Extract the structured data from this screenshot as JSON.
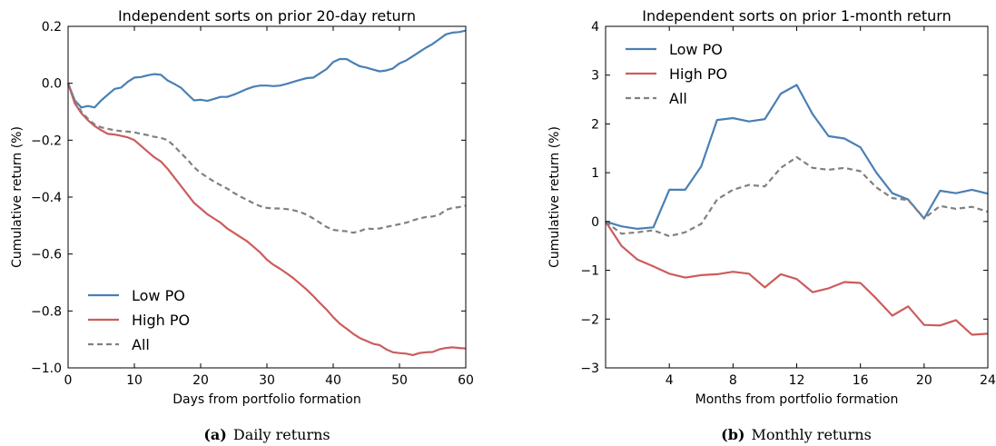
{
  "chart_data": [
    {
      "type": "line",
      "title": "Independent sorts on prior 20-day return",
      "xlabel": "Days from portfolio formation",
      "ylabel": "Cumulative return (%)",
      "xlim": [
        0,
        60
      ],
      "ylim": [
        -1.0,
        0.2
      ],
      "xticks": [
        0,
        10,
        20,
        30,
        40,
        50,
        60
      ],
      "xtick_labels": [
        "0",
        "10",
        "20",
        "30",
        "40",
        "50",
        "60"
      ],
      "yticks": [
        -1.0,
        -0.8,
        -0.6,
        -0.4,
        -0.2,
        0.0,
        0.2
      ],
      "ytick_labels": [
        "−1.0",
        "−0.8",
        "−0.6",
        "−0.4",
        "−0.2",
        "0.0",
        "0.2"
      ],
      "legend_position": "lower-left",
      "caption_label": "(a)",
      "caption_text": "Daily returns",
      "series": [
        {
          "name": "Low PO",
          "color": "#4a7fb4",
          "dash": false,
          "x": [
            0,
            1,
            2,
            3,
            4,
            5,
            6,
            7,
            8,
            9,
            10,
            11,
            12,
            13,
            14,
            15,
            16,
            17,
            18,
            19,
            20,
            21,
            22,
            23,
            24,
            25,
            26,
            27,
            28,
            29,
            30,
            31,
            32,
            33,
            34,
            35,
            36,
            37,
            38,
            39,
            40,
            41,
            42,
            43,
            44,
            45,
            46,
            47,
            48,
            49,
            50,
            51,
            52,
            53,
            54,
            55,
            56,
            57,
            58,
            59,
            60
          ],
          "y": [
            0.0,
            -0.06,
            -0.085,
            -0.08,
            -0.085,
            -0.06,
            -0.04,
            -0.02,
            -0.015,
            0.005,
            0.02,
            0.022,
            0.028,
            0.032,
            0.03,
            0.01,
            -0.002,
            -0.015,
            -0.038,
            -0.06,
            -0.058,
            -0.062,
            -0.055,
            -0.048,
            -0.048,
            -0.04,
            -0.03,
            -0.02,
            -0.012,
            -0.008,
            -0.008,
            -0.01,
            -0.008,
            -0.002,
            0.005,
            0.012,
            0.018,
            0.02,
            0.035,
            0.05,
            0.075,
            0.085,
            0.085,
            0.072,
            0.06,
            0.055,
            0.048,
            0.042,
            0.045,
            0.052,
            0.07,
            0.08,
            0.095,
            0.11,
            0.125,
            0.138,
            0.155,
            0.172,
            0.178,
            0.18,
            0.185
          ]
        },
        {
          "name": "High PO",
          "color": "#cc5c5c",
          "dash": false,
          "x": [
            0,
            1,
            2,
            3,
            4,
            5,
            6,
            7,
            8,
            9,
            10,
            11,
            12,
            13,
            14,
            15,
            16,
            17,
            18,
            19,
            20,
            21,
            22,
            23,
            24,
            25,
            26,
            27,
            28,
            29,
            30,
            31,
            32,
            33,
            34,
            35,
            36,
            37,
            38,
            39,
            40,
            41,
            42,
            43,
            44,
            45,
            46,
            47,
            48,
            49,
            50,
            51,
            52,
            53,
            54,
            55,
            56,
            57,
            58,
            59,
            60
          ],
          "y": [
            0.0,
            -0.07,
            -0.105,
            -0.13,
            -0.15,
            -0.165,
            -0.178,
            -0.18,
            -0.185,
            -0.19,
            -0.2,
            -0.22,
            -0.24,
            -0.26,
            -0.275,
            -0.3,
            -0.33,
            -0.36,
            -0.39,
            -0.42,
            -0.44,
            -0.46,
            -0.475,
            -0.49,
            -0.51,
            -0.525,
            -0.54,
            -0.555,
            -0.575,
            -0.595,
            -0.62,
            -0.638,
            -0.652,
            -0.668,
            -0.685,
            -0.705,
            -0.725,
            -0.748,
            -0.772,
            -0.795,
            -0.822,
            -0.845,
            -0.862,
            -0.88,
            -0.895,
            -0.905,
            -0.915,
            -0.92,
            -0.935,
            -0.945,
            -0.948,
            -0.95,
            -0.955,
            -0.948,
            -0.945,
            -0.944,
            -0.935,
            -0.93,
            -0.928,
            -0.93,
            -0.932
          ]
        },
        {
          "name": "All",
          "color": "#808080",
          "dash": true,
          "x": [
            0,
            1,
            2,
            3,
            4,
            5,
            6,
            7,
            8,
            9,
            10,
            11,
            12,
            13,
            14,
            15,
            16,
            17,
            18,
            19,
            20,
            21,
            22,
            23,
            24,
            25,
            26,
            27,
            28,
            29,
            30,
            31,
            32,
            33,
            34,
            35,
            36,
            37,
            38,
            39,
            40,
            41,
            42,
            43,
            44,
            45,
            46,
            47,
            48,
            49,
            50,
            51,
            52,
            53,
            54,
            55,
            56,
            57,
            58,
            59,
            60
          ],
          "y": [
            0.0,
            -0.06,
            -0.1,
            -0.125,
            -0.145,
            -0.155,
            -0.16,
            -0.165,
            -0.168,
            -0.17,
            -0.172,
            -0.178,
            -0.182,
            -0.188,
            -0.192,
            -0.2,
            -0.22,
            -0.245,
            -0.268,
            -0.295,
            -0.315,
            -0.33,
            -0.345,
            -0.358,
            -0.37,
            -0.385,
            -0.398,
            -0.41,
            -0.422,
            -0.432,
            -0.438,
            -0.44,
            -0.44,
            -0.442,
            -0.446,
            -0.452,
            -0.462,
            -0.475,
            -0.49,
            -0.505,
            -0.515,
            -0.518,
            -0.52,
            -0.525,
            -0.52,
            -0.51,
            -0.512,
            -0.51,
            -0.505,
            -0.5,
            -0.495,
            -0.49,
            -0.482,
            -0.475,
            -0.47,
            -0.468,
            -0.462,
            -0.445,
            -0.438,
            -0.435,
            -0.43
          ]
        }
      ]
    },
    {
      "type": "line",
      "title": "Independent sorts on prior 1-month return",
      "xlabel": "Months from portfolio formation",
      "ylabel": "Cumulative return (%)",
      "xlim": [
        0,
        24
      ],
      "ylim": [
        -3,
        4
      ],
      "xticks": [
        4,
        8,
        12,
        16,
        20,
        24
      ],
      "xtick_labels": [
        "4",
        "8",
        "12",
        "16",
        "20",
        "24"
      ],
      "yticks": [
        -3,
        -2,
        -1,
        0,
        1,
        2,
        3,
        4
      ],
      "ytick_labels": [
        "−3",
        "−2",
        "−1",
        "0",
        "1",
        "2",
        "3",
        "4"
      ],
      "legend_position": "top-left",
      "caption_label": "(b)",
      "caption_text": "Monthly returns",
      "series": [
        {
          "name": "Low PO",
          "color": "#4a7fb4",
          "dash": false,
          "x": [
            0,
            1,
            2,
            3,
            4,
            5,
            6,
            7,
            8,
            9,
            10,
            11,
            12,
            13,
            14,
            15,
            16,
            17,
            18,
            19,
            20,
            21,
            22,
            23,
            24
          ],
          "y": [
            0.0,
            -0.1,
            -0.15,
            -0.12,
            0.65,
            0.65,
            1.13,
            2.08,
            2.12,
            2.05,
            2.1,
            2.62,
            2.8,
            2.2,
            1.75,
            1.7,
            1.52,
            1.0,
            0.58,
            0.45,
            0.06,
            0.63,
            0.58,
            0.65,
            0.57
          ]
        },
        {
          "name": "High PO",
          "color": "#cc5c5c",
          "dash": false,
          "x": [
            0,
            1,
            2,
            3,
            4,
            5,
            6,
            7,
            8,
            9,
            10,
            11,
            12,
            13,
            14,
            15,
            16,
            17,
            18,
            19,
            20,
            21,
            22,
            23,
            24
          ],
          "y": [
            0.0,
            -0.5,
            -0.78,
            -0.92,
            -1.07,
            -1.15,
            -1.1,
            -1.08,
            -1.03,
            -1.07,
            -1.35,
            -1.08,
            -1.18,
            -1.45,
            -1.37,
            -1.24,
            -1.26,
            -1.58,
            -1.93,
            -1.74,
            -2.12,
            -2.13,
            -2.02,
            -2.32,
            -2.3
          ]
        },
        {
          "name": "All",
          "color": "#808080",
          "dash": true,
          "x": [
            0,
            1,
            2,
            3,
            4,
            5,
            6,
            7,
            8,
            9,
            10,
            11,
            12,
            13,
            14,
            15,
            16,
            17,
            18,
            19,
            20,
            21,
            22,
            23,
            24
          ],
          "y": [
            0.0,
            -0.25,
            -0.22,
            -0.18,
            -0.3,
            -0.22,
            -0.05,
            0.45,
            0.65,
            0.75,
            0.72,
            1.1,
            1.32,
            1.1,
            1.06,
            1.1,
            1.03,
            0.7,
            0.48,
            0.44,
            0.06,
            0.32,
            0.26,
            0.3,
            0.2
          ]
        }
      ]
    }
  ]
}
